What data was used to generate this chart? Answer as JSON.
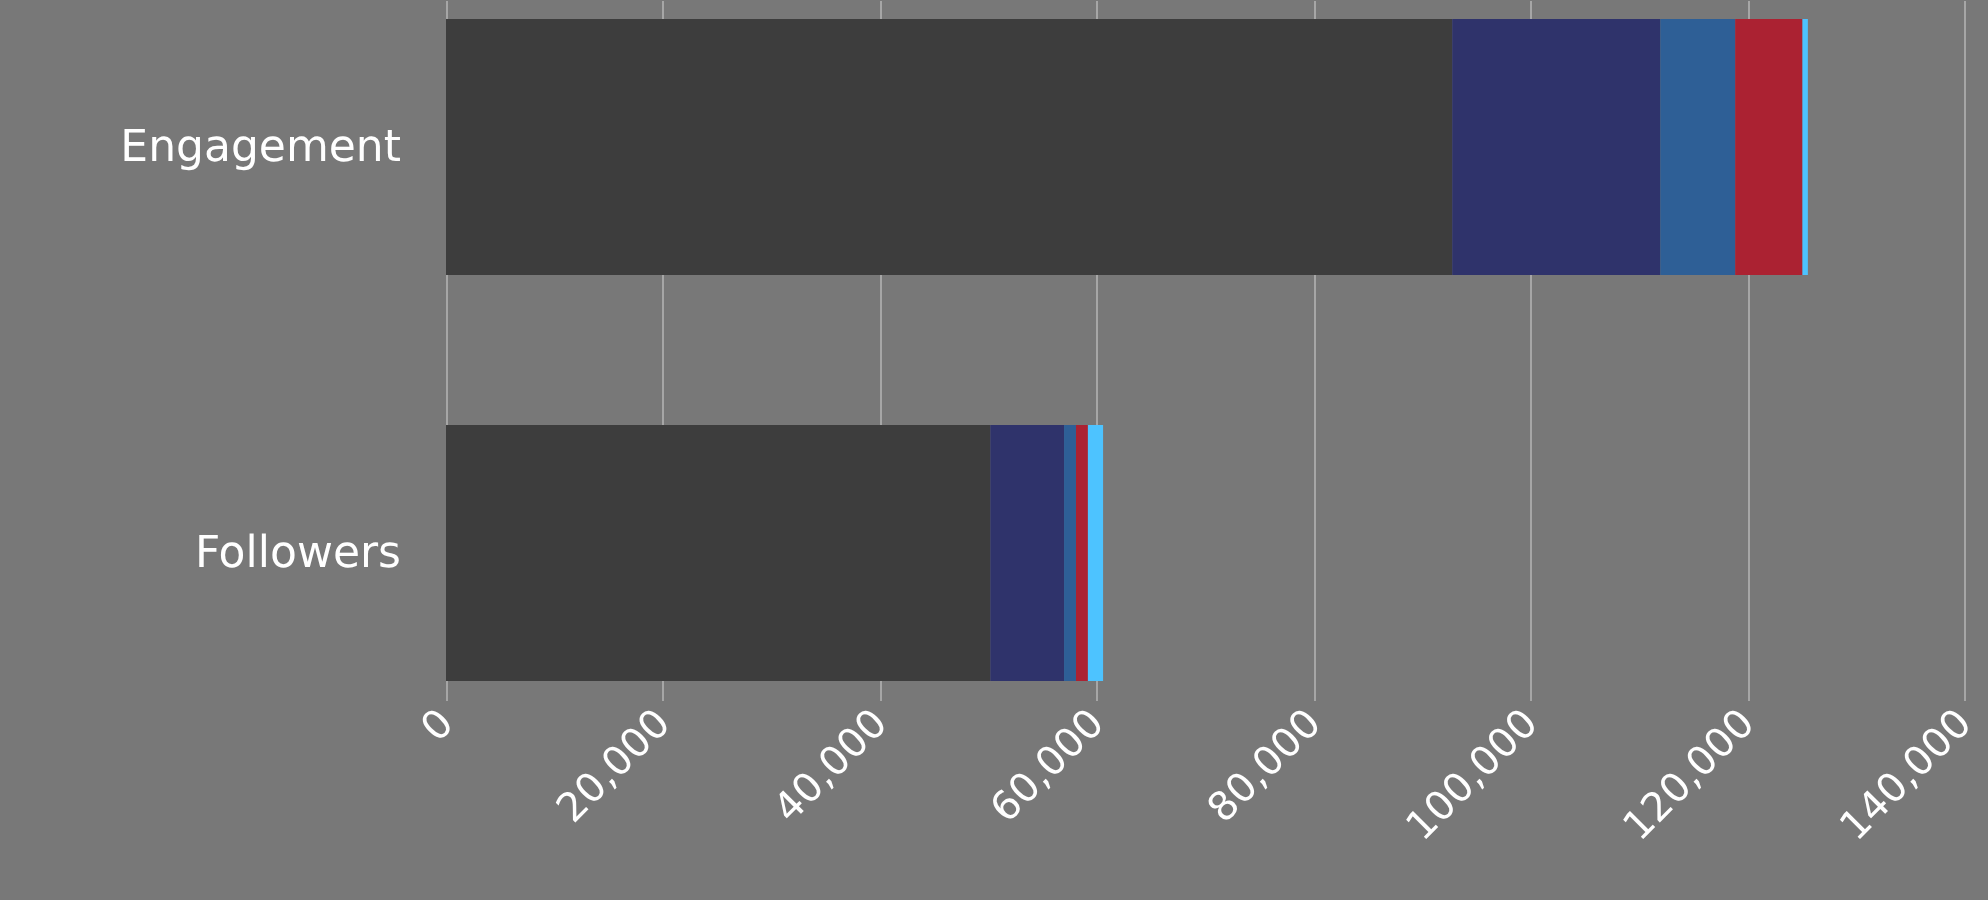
{
  "chart_data": {
    "type": "bar",
    "orientation": "horizontal",
    "stacked": true,
    "categories": [
      "Engagement",
      "Followers"
    ],
    "series": [
      {
        "color": "#3d3d3d",
        "values": [
          92800,
          50200
        ]
      },
      {
        "color": "#2f336b",
        "values": [
          19200,
          6800
        ]
      },
      {
        "color": "#2e5f96",
        "values": [
          6900,
          1100
        ]
      },
      {
        "color": "#ab2232",
        "values": [
          6200,
          1100
        ]
      },
      {
        "color": "#4dc3ff",
        "values": [
          500,
          1400
        ]
      }
    ],
    "xlim": [
      0,
      140000
    ],
    "xticks": [
      {
        "value": 0,
        "label": "0"
      },
      {
        "value": 20000,
        "label": "20,000"
      },
      {
        "value": 40000,
        "label": "40,000"
      },
      {
        "value": 60000,
        "label": "60,000"
      },
      {
        "value": 80000,
        "label": "80,000"
      },
      {
        "value": 100000,
        "label": "100,000"
      },
      {
        "value": 120000,
        "label": "120,000"
      },
      {
        "value": 140000,
        "label": "140,000"
      }
    ],
    "grid": "x"
  }
}
